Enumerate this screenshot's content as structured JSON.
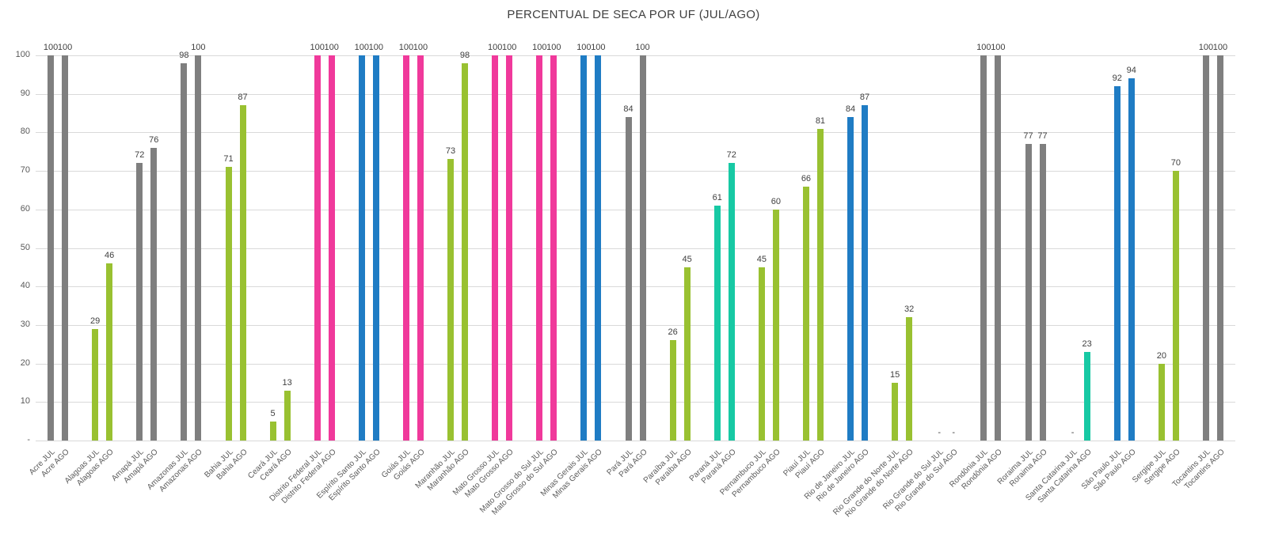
{
  "chart_data": {
    "type": "bar",
    "title": "PERCENTUAL DE SECA POR UF (JUL/AGO)",
    "series_suffixes": [
      "JUL",
      "AGO"
    ],
    "ylim": [
      0,
      100
    ],
    "grid": true,
    "legend": "none",
    "missing_marker": "-",
    "y_ticks": [
      {
        "v": 100,
        "t": "100"
      },
      {
        "v": 90,
        "t": "90"
      },
      {
        "v": 80,
        "t": "80"
      },
      {
        "v": 70,
        "t": "70"
      },
      {
        "v": 60,
        "t": "60"
      },
      {
        "v": 50,
        "t": "50"
      },
      {
        "v": 40,
        "t": "40"
      },
      {
        "v": 30,
        "t": "30"
      },
      {
        "v": 20,
        "t": "20"
      },
      {
        "v": 10,
        "t": "10"
      },
      {
        "v": 0,
        "t": "-"
      }
    ],
    "palette": {
      "gray": "#7f7f7f",
      "green": "#99c131",
      "pink": "#f0399b",
      "blue": "#1f7cc4",
      "teal": "#17c9a4"
    },
    "states": [
      {
        "name": "Acre",
        "color": "gray",
        "jul": 100,
        "ago": 100
      },
      {
        "name": "Alagoas",
        "color": "green",
        "jul": 29,
        "ago": 46
      },
      {
        "name": "Amapá",
        "color": "gray",
        "jul": 72,
        "ago": 76
      },
      {
        "name": "Amazonas",
        "color": "gray",
        "jul": 98,
        "ago": 100
      },
      {
        "name": "Bahia",
        "color": "green",
        "jul": 71,
        "ago": 87
      },
      {
        "name": "Ceará",
        "color": "green",
        "jul": 5,
        "ago": 13
      },
      {
        "name": "Distrito Federal",
        "color": "pink",
        "jul": 100,
        "ago": 100
      },
      {
        "name": "Espírito Santo",
        "color": "blue",
        "jul": 100,
        "ago": 100
      },
      {
        "name": "Goiás",
        "color": "pink",
        "jul": 100,
        "ago": 100
      },
      {
        "name": "Maranhão",
        "color": "green",
        "jul": 73,
        "ago": 98
      },
      {
        "name": "Mato Grosso",
        "color": "pink",
        "jul": 100,
        "ago": 100
      },
      {
        "name": "Mato Grosso do Sul",
        "color": "pink",
        "jul": 100,
        "ago": 100
      },
      {
        "name": "Minas Gerais",
        "color": "blue",
        "jul": 100,
        "ago": 100
      },
      {
        "name": "Pará",
        "color": "gray",
        "jul": 84,
        "ago": 100
      },
      {
        "name": "Paraíba",
        "color": "green",
        "jul": 26,
        "ago": 45
      },
      {
        "name": "Paraná",
        "color": "teal",
        "jul": 61,
        "ago": 72
      },
      {
        "name": "Pernambuco",
        "color": "green",
        "jul": 45,
        "ago": 60
      },
      {
        "name": "Piauí",
        "color": "green",
        "jul": 66,
        "ago": 81
      },
      {
        "name": "Rio de Janeiro",
        "color": "blue",
        "jul": 84,
        "ago": 87
      },
      {
        "name": "Rio Grande do Norte",
        "color": "green",
        "jul": 15,
        "ago": 32
      },
      {
        "name": "Rio Grande do Sul",
        "color": "teal",
        "jul": null,
        "ago": null
      },
      {
        "name": "Rondônia",
        "color": "gray",
        "jul": 100,
        "ago": 100
      },
      {
        "name": "Roraima",
        "color": "gray",
        "jul": 77,
        "ago": 77
      },
      {
        "name": "Santa Catarina",
        "color": "teal",
        "jul": null,
        "ago": 23
      },
      {
        "name": "São Paulo",
        "color": "blue",
        "jul": 92,
        "ago": 94
      },
      {
        "name": "Sergipe",
        "color": "green",
        "jul": 20,
        "ago": 70
      },
      {
        "name": "Tocantins",
        "color": "gray",
        "jul": 100,
        "ago": 100
      }
    ]
  }
}
